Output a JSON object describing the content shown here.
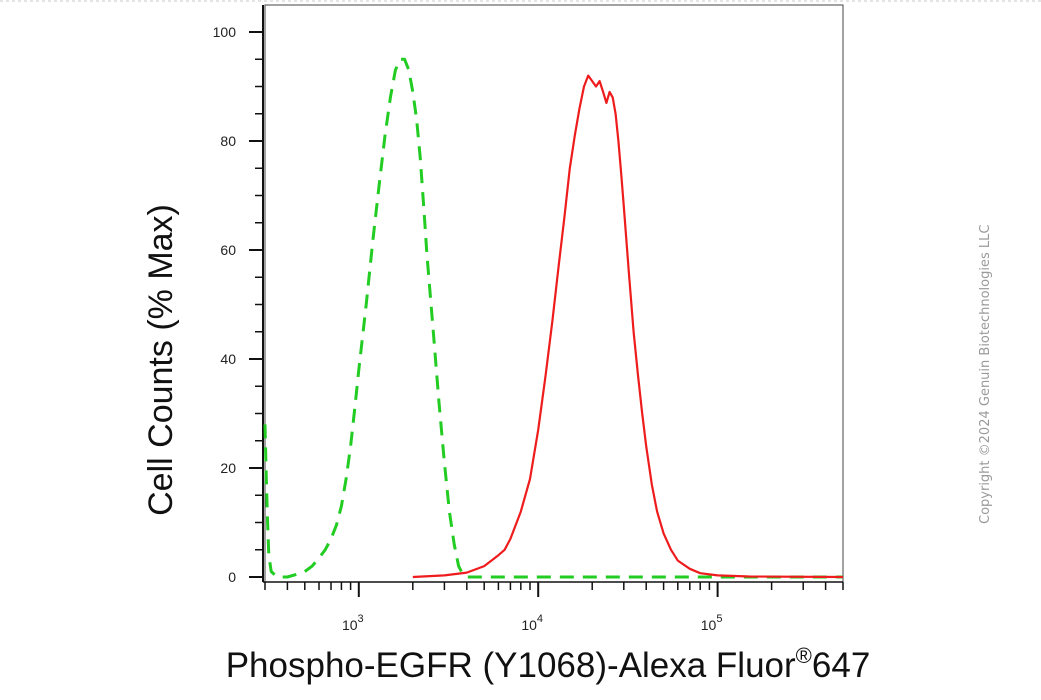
{
  "chart_data": {
    "type": "line",
    "title": "",
    "xlabel": "Phospho-EGFR (Y1068)-Alexa Fluor",
    "xlabel_sup": "®",
    "xlabel_suffix": "647",
    "ylabel": "Cell Counts (% Max)",
    "xscale": "log",
    "xlim": [
      300,
      500000
    ],
    "ylim": [
      0,
      100
    ],
    "y_ticks": [
      0,
      20,
      40,
      60,
      80,
      100
    ],
    "x_ticks": [
      {
        "value": 1000,
        "base": "10",
        "exp": "3"
      },
      {
        "value": 10000,
        "base": "10",
        "exp": "4"
      },
      {
        "value": 100000,
        "base": "10",
        "exp": "5"
      }
    ],
    "grid": false,
    "series": [
      {
        "color": "#22cc22",
        "dash": "dashed",
        "points": [
          [
            300,
            28
          ],
          [
            305,
            18
          ],
          [
            310,
            10
          ],
          [
            315,
            4
          ],
          [
            325,
            1
          ],
          [
            350,
            0
          ],
          [
            400,
            0
          ],
          [
            450,
            0.5
          ],
          [
            500,
            1
          ],
          [
            550,
            2
          ],
          [
            600,
            3.5
          ],
          [
            650,
            5
          ],
          [
            700,
            7
          ],
          [
            750,
            9.5
          ],
          [
            800,
            13
          ],
          [
            850,
            18
          ],
          [
            900,
            24
          ],
          [
            950,
            31
          ],
          [
            1000,
            38
          ],
          [
            1100,
            50
          ],
          [
            1200,
            62
          ],
          [
            1300,
            72
          ],
          [
            1400,
            81
          ],
          [
            1500,
            88
          ],
          [
            1600,
            93
          ],
          [
            1700,
            95
          ],
          [
            1800,
            95
          ],
          [
            1900,
            93
          ],
          [
            2000,
            89
          ],
          [
            2100,
            84
          ],
          [
            2200,
            77
          ],
          [
            2300,
            68
          ],
          [
            2400,
            59
          ],
          [
            2600,
            45
          ],
          [
            2800,
            32
          ],
          [
            3000,
            21
          ],
          [
            3200,
            12
          ],
          [
            3400,
            6
          ],
          [
            3600,
            2
          ],
          [
            3800,
            0.5
          ],
          [
            4000,
            0
          ],
          [
            500000,
            0
          ]
        ]
      },
      {
        "color": "#ee1c1c",
        "dash": "solid",
        "points": [
          [
            2000,
            0
          ],
          [
            3000,
            0.3
          ],
          [
            4000,
            0.8
          ],
          [
            5000,
            2
          ],
          [
            6000,
            4
          ],
          [
            6500,
            5
          ],
          [
            7000,
            7
          ],
          [
            8000,
            12
          ],
          [
            9000,
            18
          ],
          [
            10000,
            27
          ],
          [
            11000,
            37
          ],
          [
            12000,
            47
          ],
          [
            13000,
            57
          ],
          [
            14000,
            66
          ],
          [
            15000,
            75
          ],
          [
            16000,
            81
          ],
          [
            17000,
            86
          ],
          [
            18000,
            90
          ],
          [
            19000,
            92
          ],
          [
            20000,
            91
          ],
          [
            21000,
            90
          ],
          [
            22000,
            91
          ],
          [
            23000,
            89
          ],
          [
            24000,
            87
          ],
          [
            25000,
            89
          ],
          [
            26000,
            88
          ],
          [
            27000,
            85
          ],
          [
            28000,
            80
          ],
          [
            29000,
            74
          ],
          [
            30000,
            68
          ],
          [
            32000,
            56
          ],
          [
            34000,
            45
          ],
          [
            36000,
            37
          ],
          [
            38000,
            30
          ],
          [
            40000,
            24
          ],
          [
            43000,
            17
          ],
          [
            46000,
            12
          ],
          [
            50000,
            8
          ],
          [
            55000,
            5
          ],
          [
            60000,
            3
          ],
          [
            70000,
            1.5
          ],
          [
            80000,
            0.7
          ],
          [
            100000,
            0.3
          ],
          [
            150000,
            0.1
          ],
          [
            500000,
            0
          ]
        ]
      }
    ]
  },
  "copyright": "Copyright ©2024 Genuin Biotechnologies LLC"
}
